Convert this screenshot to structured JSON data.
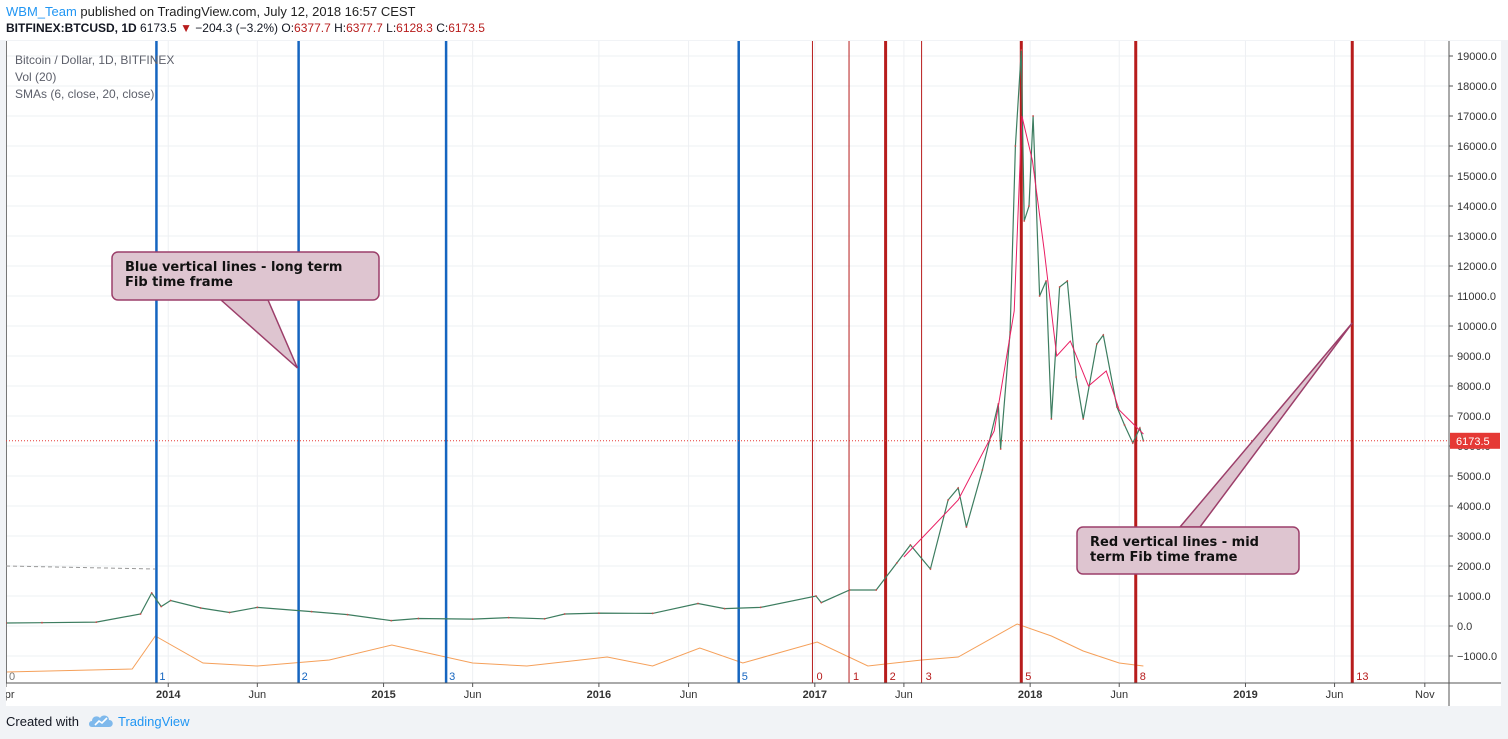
{
  "header": {
    "author": "WBM_Team",
    "published_text": " published on TradingView.com, July 12, 2018 16:57 CEST",
    "symbol": "BITFINEX:BTCUSD, 1D",
    "last": "6173.5",
    "arrow": "▼",
    "change": "−204.3 (−3.2%)",
    "o_label": "O:",
    "o": "6377.7",
    "h_label": "H:",
    "h": "6377.7",
    "l_label": "L:",
    "l": "6128.3",
    "c_label": "C:",
    "c": "6173.5"
  },
  "legend": {
    "title": "Bitcoin / Dollar, 1D, BITFINEX",
    "vol": "Vol (20)",
    "smas": "SMAs (6, close, 20, close)"
  },
  "footer": {
    "created_with": "Created with",
    "brand": "TradingView"
  },
  "colors": {
    "blue_line": "#1565c0",
    "red_line": "#b71c1c",
    "price_line": "#e53935",
    "callout_fill": "#dec5d0",
    "callout_border": "#9c3f6a",
    "volume_up": "#f3a5a5",
    "volume_down": "#a7d8bd",
    "volume_sma": "#f5a05a"
  },
  "chart_data": {
    "type": "line",
    "title": "Bitcoin / Dollar, 1D, BITFINEX",
    "ylim": [
      -1900,
      19500
    ],
    "y_ticks": [
      19000,
      18000,
      17000,
      16000,
      15000,
      14000,
      13000,
      12000,
      11000,
      10000,
      9000,
      8000,
      7000,
      6000,
      5000,
      4000,
      3000,
      2000,
      1000,
      0,
      -1000
    ],
    "y_tick_labels": [
      "19000.0",
      "18000.0",
      "17000.0",
      "16000.0",
      "15000.0",
      "14000.0",
      "13000.0",
      "12000.0",
      "11000.0",
      "10000.0",
      "9000.0",
      "8000.0",
      "7000.0",
      "6000.0",
      "5000.0",
      "4000.0",
      "3000.0",
      "2000.0",
      "1000.0",
      "0.0",
      "−1000.0"
    ],
    "x_range": [
      "2013-04-01",
      "2019-12-12"
    ],
    "x_ticks": [
      {
        "date": "2013-04-01",
        "label": "Apr",
        "bold": false
      },
      {
        "date": "2014-01-01",
        "label": "2014",
        "bold": true
      },
      {
        "date": "2014-06-01",
        "label": "Jun",
        "bold": false
      },
      {
        "date": "2015-01-01",
        "label": "2015",
        "bold": true
      },
      {
        "date": "2015-06-01",
        "label": "Jun",
        "bold": false
      },
      {
        "date": "2016-01-01",
        "label": "2016",
        "bold": true
      },
      {
        "date": "2016-06-01",
        "label": "Jun",
        "bold": false
      },
      {
        "date": "2017-01-01",
        "label": "2017",
        "bold": true
      },
      {
        "date": "2017-06-01",
        "label": "Jun",
        "bold": false
      },
      {
        "date": "2018-01-01",
        "label": "2018",
        "bold": true
      },
      {
        "date": "2018-06-01",
        "label": "Jun",
        "bold": false
      },
      {
        "date": "2019-01-01",
        "label": "2019",
        "bold": true
      },
      {
        "date": "2019-06-01",
        "label": "Jun",
        "bold": false
      },
      {
        "date": "2019-11-01",
        "label": "Nov",
        "bold": false
      }
    ],
    "price_series": {
      "name": "BTCUSD",
      "x": [
        "2013-04-01",
        "2013-06-01",
        "2013-09-01",
        "2013-11-15",
        "2013-12-04",
        "2013-12-20",
        "2014-01-05",
        "2014-02-25",
        "2014-04-15",
        "2014-06-01",
        "2014-09-01",
        "2014-11-01",
        "2015-01-14",
        "2015-03-01",
        "2015-06-01",
        "2015-08-01",
        "2015-10-01",
        "2015-11-04",
        "2016-01-01",
        "2016-04-01",
        "2016-06-17",
        "2016-08-01",
        "2016-10-01",
        "2017-01-03",
        "2017-01-12",
        "2017-03-01",
        "2017-04-15",
        "2017-05-20",
        "2017-06-12",
        "2017-07-16",
        "2017-08-15",
        "2017-09-01",
        "2017-09-15",
        "2017-10-12",
        "2017-11-08",
        "2017-11-12",
        "2017-11-28",
        "2017-12-07",
        "2017-12-17",
        "2017-12-22",
        "2017-12-30",
        "2018-01-06",
        "2018-01-17",
        "2018-01-28",
        "2018-02-06",
        "2018-02-20",
        "2018-03-05",
        "2018-03-20",
        "2018-04-01",
        "2018-04-24",
        "2018-05-05",
        "2018-05-28",
        "2018-06-10",
        "2018-06-24",
        "2018-07-06",
        "2018-07-12"
      ],
      "y": [
        100,
        110,
        130,
        400,
        1100,
        650,
        850,
        600,
        450,
        620,
        480,
        380,
        180,
        250,
        230,
        280,
        240,
        400,
        430,
        420,
        750,
        580,
        620,
        1000,
        780,
        1200,
        1200,
        2100,
        2700,
        1900,
        4200,
        4600,
        3300,
        5200,
        7400,
        5900,
        9800,
        16000,
        19200,
        13500,
        14000,
        17000,
        11000,
        11500,
        6900,
        11300,
        11500,
        8300,
        6900,
        9400,
        9700,
        7300,
        6700,
        6100,
        6600,
        6173.5
      ]
    },
    "sma_series": {
      "name": "SMA",
      "x": [
        "2017-06-01",
        "2017-09-01",
        "2017-11-01",
        "2017-12-05",
        "2017-12-18",
        "2018-01-05",
        "2018-01-25",
        "2018-02-15",
        "2018-03-10",
        "2018-04-10",
        "2018-05-10",
        "2018-06-01",
        "2018-07-12"
      ],
      "y": [
        2300,
        4200,
        6500,
        10500,
        17000,
        15500,
        12500,
        9000,
        9500,
        8000,
        8500,
        7200,
        6400
      ]
    },
    "volume_sma": {
      "x": [
        "2013-04-01",
        "2013-11-01",
        "2013-12-10",
        "2014-03-01",
        "2014-06-01",
        "2014-10-01",
        "2015-01-15",
        "2015-06-01",
        "2015-09-01",
        "2016-01-15",
        "2016-04-01",
        "2016-06-20",
        "2016-09-01",
        "2017-01-05",
        "2017-04-01",
        "2017-07-01",
        "2017-09-01",
        "2017-12-10",
        "2018-02-06",
        "2018-04-01",
        "2018-06-01",
        "2018-07-12"
      ],
      "y": [
        300,
        400,
        1500,
        600,
        500,
        700,
        1200,
        600,
        500,
        800,
        500,
        1100,
        600,
        1300,
        500,
        700,
        800,
        1900,
        1500,
        1000,
        600,
        500
      ]
    },
    "current_price": 6173.5,
    "current_price_label": "6173.5",
    "blue_lines": [
      {
        "date": "2013-04-01",
        "label": "0",
        "gray": true
      },
      {
        "date": "2013-12-12",
        "label": "1"
      },
      {
        "date": "2014-08-10",
        "label": "2"
      },
      {
        "date": "2015-04-17",
        "label": "3"
      },
      {
        "date": "2016-08-25",
        "label": "5"
      }
    ],
    "red_lines": [
      {
        "date": "2016-12-28",
        "label": "0",
        "thin": true
      },
      {
        "date": "2017-02-28",
        "label": "1",
        "thin": true
      },
      {
        "date": "2017-05-01",
        "label": "2",
        "thin": false
      },
      {
        "date": "2017-07-01",
        "label": "3",
        "thin": true
      },
      {
        "date": "2017-12-17",
        "label": "5",
        "thin": false
      },
      {
        "date": "2018-06-29",
        "label": "8",
        "thin": false
      },
      {
        "date": "2019-07-01",
        "label": "13",
        "thin": false
      }
    ],
    "dashed_trend": {
      "x": [
        "2013-04-01",
        "2013-12-10"
      ],
      "y": [
        2000,
        1900
      ]
    },
    "annotations": [
      {
        "id": "blue-note",
        "lines": [
          "Blue vertical lines - long term",
          "Fib time frame"
        ],
        "pointer_date": "2014-08-08",
        "pointer_value": 8600
      },
      {
        "id": "red-note",
        "lines": [
          "Red vertical lines - mid",
          "term Fib time frame"
        ],
        "pointer_date": "2019-07-01",
        "pointer_value": 10100
      }
    ]
  }
}
